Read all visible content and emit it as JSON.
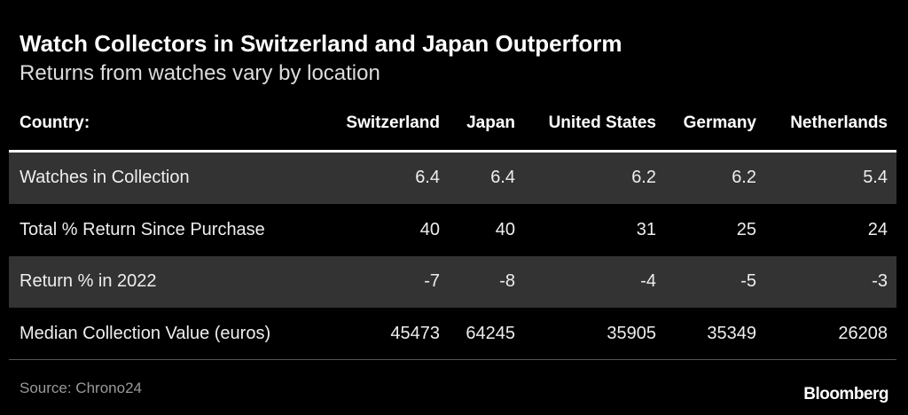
{
  "header": {
    "title": "Watch Collectors in Switzerland and Japan Outperform",
    "subtitle": "Returns from watches vary by location"
  },
  "table": {
    "columns": [
      "Country:",
      "Switzerland",
      "Japan",
      "United States",
      "Germany",
      "Netherlands"
    ],
    "rows": [
      [
        "Watches in Collection",
        6.4,
        6.4,
        6.2,
        6.2,
        5.4
      ],
      [
        "Total % Return Since Purchase",
        40,
        40,
        31,
        25,
        24
      ],
      [
        "Return % in 2022",
        -7,
        -8,
        -4,
        -5,
        -3
      ],
      [
        "Median Collection Value (euros)",
        45473,
        64245,
        35905,
        35349,
        26208
      ]
    ]
  },
  "footer": {
    "source": "Source: Chrono24",
    "brand": "Bloomberg"
  }
}
